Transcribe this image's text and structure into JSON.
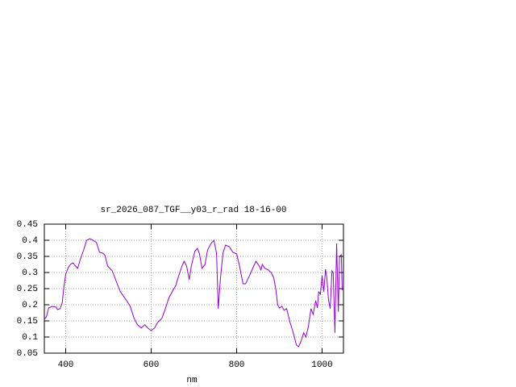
{
  "chart_data": {
    "type": "line",
    "title": "sr_2026_087_TGF__y03_r_rad 18-16-00",
    "xlabel": "nm",
    "x": [
      350,
      355,
      360,
      368,
      377,
      381,
      387,
      392,
      396,
      400,
      406,
      411,
      417,
      423,
      428,
      434,
      442,
      449,
      457,
      464,
      472,
      479,
      487,
      492,
      498,
      509,
      519,
      528,
      540,
      551,
      560,
      568,
      577,
      585,
      592,
      600,
      608,
      615,
      625,
      632,
      641,
      651,
      657,
      664,
      672,
      677,
      683,
      689,
      694,
      702,
      708,
      713,
      719,
      726,
      732,
      740,
      747,
      753,
      757,
      762,
      768,
      774,
      783,
      791,
      800,
      806,
      815,
      821,
      830,
      840,
      845,
      853,
      857,
      860,
      866,
      874,
      881,
      887,
      892,
      896,
      900,
      906,
      911,
      917,
      925,
      932,
      940,
      945,
      951,
      957,
      962,
      968,
      974,
      979,
      985,
      989,
      992,
      996,
      1000,
      1004,
      1008,
      1011,
      1015,
      1019,
      1023,
      1026,
      1030,
      1034,
      1038,
      1041,
      1045,
      1047
    ],
    "series": [
      {
        "color": "#9400d3",
        "values": [
          0.155,
          0.163,
          0.19,
          0.195,
          0.193,
          0.185,
          0.188,
          0.208,
          0.258,
          0.295,
          0.315,
          0.325,
          0.33,
          0.32,
          0.313,
          0.34,
          0.37,
          0.4,
          0.405,
          0.4,
          0.393,
          0.363,
          0.36,
          0.353,
          0.32,
          0.305,
          0.27,
          0.24,
          0.218,
          0.195,
          0.158,
          0.138,
          0.128,
          0.138,
          0.128,
          0.12,
          0.128,
          0.145,
          0.158,
          0.183,
          0.22,
          0.245,
          0.258,
          0.288,
          0.32,
          0.335,
          0.32,
          0.278,
          0.32,
          0.365,
          0.375,
          0.358,
          0.313,
          0.325,
          0.37,
          0.39,
          0.4,
          0.36,
          0.188,
          0.28,
          0.36,
          0.385,
          0.38,
          0.363,
          0.358,
          0.325,
          0.265,
          0.265,
          0.29,
          0.32,
          0.335,
          0.32,
          0.308,
          0.325,
          0.313,
          0.308,
          0.3,
          0.283,
          0.245,
          0.2,
          0.19,
          0.195,
          0.183,
          0.188,
          0.145,
          0.115,
          0.075,
          0.07,
          0.088,
          0.113,
          0.1,
          0.133,
          0.188,
          0.17,
          0.213,
          0.19,
          0.24,
          0.233,
          0.29,
          0.24,
          0.31,
          0.285,
          0.215,
          0.188,
          0.305,
          0.3,
          0.113,
          0.39,
          0.178,
          0.35,
          0.355,
          0.245
        ]
      }
    ],
    "xlim": [
      350,
      1050
    ],
    "xticks": [
      400,
      600,
      800,
      1000
    ],
    "ylim": [
      0.05,
      0.45
    ],
    "yticks": [
      0.05,
      0.1,
      0.15,
      0.2,
      0.25,
      0.3,
      0.35,
      0.4,
      0.45
    ],
    "grid": true
  }
}
